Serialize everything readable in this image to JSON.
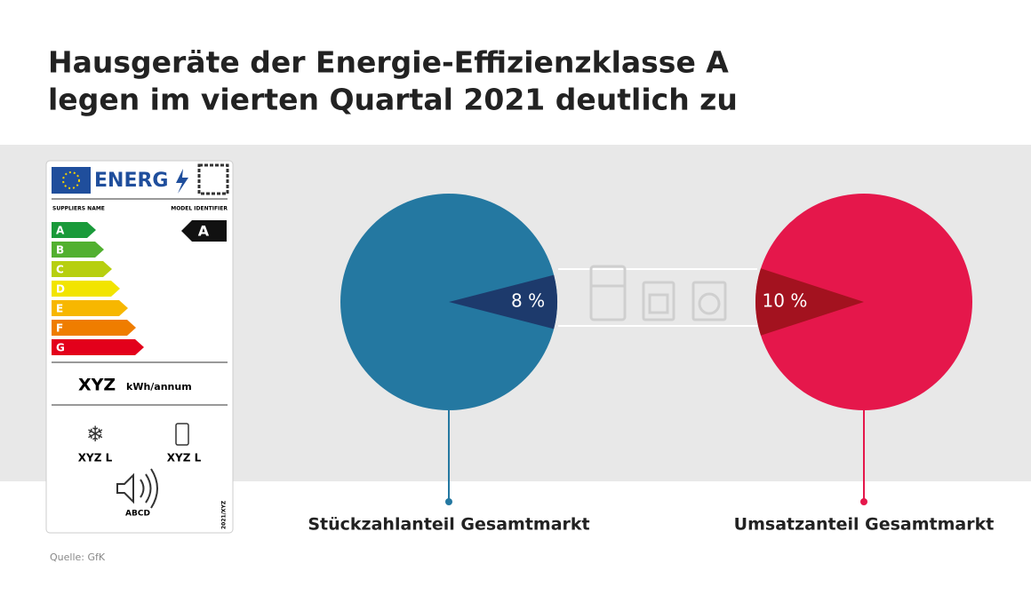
{
  "title_lines": [
    "Hausgeräte der Energie-Effizienzklasse A",
    "legen im vierten Quartal 2021 deutlich zu"
  ],
  "source": "Quelle: GfK",
  "energy_label": {
    "brand": "ENERG",
    "supplier": "SUPPLIERS NAME",
    "model": "MODEL IDENTIFIER",
    "classes": [
      "A",
      "B",
      "C",
      "D",
      "E",
      "F",
      "G"
    ],
    "class_colors": [
      "#1a9a3a",
      "#52b030",
      "#b7cf0f",
      "#f2e400",
      "#f7b700",
      "#ef7d00",
      "#e3001b"
    ],
    "rating": "A",
    "consumption": "XYZ",
    "consumption_unit": "kWh/annum",
    "freezer": "XYZ L",
    "fridge": "XYZ L",
    "noise_class": "ABCD",
    "regulation": "2021/XYZ"
  },
  "chart_data": [
    {
      "type": "pie",
      "label": "Stückzahlanteil Gesamtmarkt",
      "values": [
        8
      ],
      "value_labels": [
        "8 %"
      ],
      "color": "#2478a1",
      "slice_color": "#1d3a6c",
      "slice_side": "right"
    },
    {
      "type": "pie",
      "label": "Umsatzanteil Gesamtmarkt",
      "values": [
        10
      ],
      "value_labels": [
        "10 %"
      ],
      "color": "#e5174b",
      "slice_color": "#a3121f",
      "slice_side": "left"
    }
  ]
}
